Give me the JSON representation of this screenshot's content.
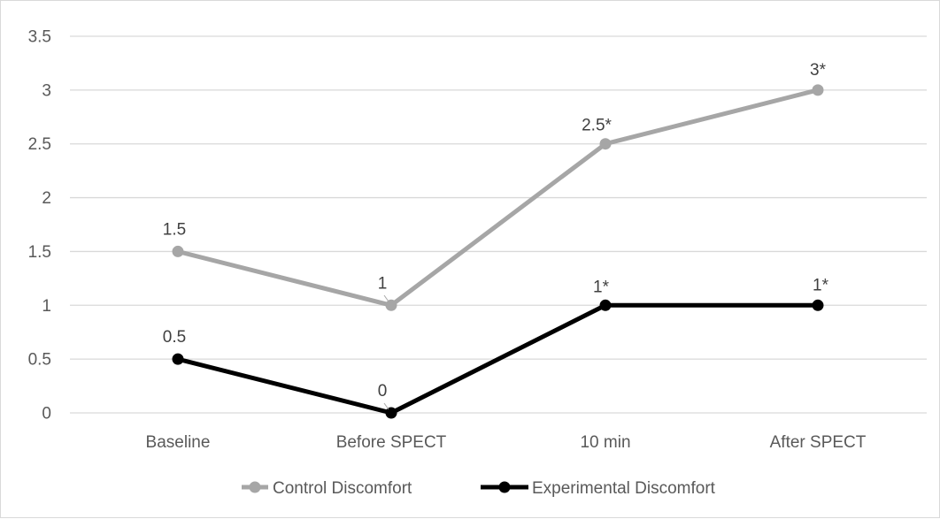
{
  "chart_data": {
    "type": "line",
    "title": "",
    "xlabel": "",
    "ylabel": "",
    "categories": [
      "Baseline",
      "Before SPECT",
      "10 min",
      "After SPECT"
    ],
    "ylim": [
      0,
      3.5
    ],
    "yticks": [
      0,
      0.5,
      1,
      1.5,
      2,
      2.5,
      3,
      3.5
    ],
    "ytick_labels": [
      "0",
      "0.5",
      "1",
      "1.5",
      "2",
      "2.5",
      "3",
      "3.5"
    ],
    "grid": "horizontal",
    "legend_position": "bottom",
    "series": [
      {
        "name": "Control Discomfort",
        "color": "#a6a6a6",
        "values": [
          1.5,
          1,
          2.5,
          3
        ],
        "labels": [
          "1.5",
          "1",
          "2.5*",
          "3*"
        ]
      },
      {
        "name": "Experimental Discomfort",
        "color": "#000000",
        "values": [
          0.5,
          0,
          1,
          1
        ],
        "labels": [
          "0.5",
          "0",
          "1*",
          "1*"
        ]
      }
    ]
  },
  "colors": {
    "grid": "#d9d9d9",
    "axis_text": "#595959",
    "label_text": "#404040"
  }
}
